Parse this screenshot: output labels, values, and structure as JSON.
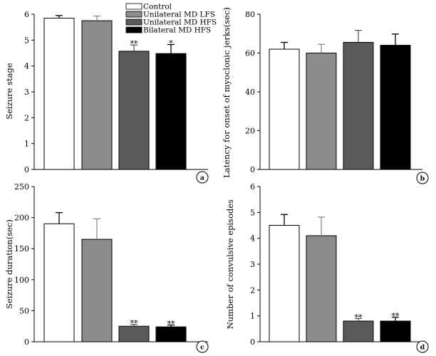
{
  "legend": [
    {
      "name": "Control",
      "color": "#ffffff"
    },
    {
      "name": "Unilateral MD LFS",
      "color": "#8c8c8c"
    },
    {
      "name": "Unilateral MD HFS",
      "color": "#5a5a5a"
    },
    {
      "name": "Bilateral MD HFS",
      "color": "#000000"
    }
  ],
  "chart_data": [
    {
      "type": "bar",
      "panel": "a",
      "ylabel": "Seizure stage",
      "ylim": [
        0,
        6
      ],
      "yticks": [
        0,
        1,
        2,
        3,
        4,
        5,
        6
      ],
      "categories": [
        "Control",
        "Unilateral MD LFS",
        "Unilateral MD HFS",
        "Bilateral MD HFS"
      ],
      "values": [
        5.85,
        5.75,
        4.57,
        4.48
      ],
      "errors": [
        0.1,
        0.18,
        0.24,
        0.35
      ],
      "significance": [
        "",
        "",
        "**",
        "*"
      ]
    },
    {
      "type": "bar",
      "panel": "b",
      "ylabel": "Latency for onset of myoclonic jerks(sec)",
      "ylim": [
        0,
        80
      ],
      "yticks": [
        0,
        20,
        40,
        60,
        80
      ],
      "categories": [
        "Control",
        "Unilateral MD LFS",
        "Unilateral MD HFS",
        "Bilateral MD HFS"
      ],
      "values": [
        62,
        60,
        65.5,
        64
      ],
      "errors": [
        3.5,
        4.5,
        6.2,
        5.8
      ],
      "significance": [
        "",
        "",
        "",
        ""
      ]
    },
    {
      "type": "bar",
      "panel": "c",
      "ylabel": "Seizure duration(sec)",
      "ylim": [
        0,
        250
      ],
      "yticks": [
        0,
        50,
        100,
        150,
        200,
        250
      ],
      "categories": [
        "Control",
        "Unilateral MD LFS",
        "Unilateral MD HFS",
        "Bilateral MD HFS"
      ],
      "values": [
        190,
        165,
        25,
        24
      ],
      "errors": [
        18,
        33,
        3,
        3
      ],
      "significance": [
        "",
        "",
        "**",
        "**"
      ]
    },
    {
      "type": "bar",
      "panel": "d",
      "ylabel": "Number of convulsive episodes",
      "ylim": [
        0,
        6
      ],
      "yticks": [
        0,
        1,
        2,
        3,
        4,
        5,
        6
      ],
      "categories": [
        "Control",
        "Unilateral MD LFS",
        "Unilateral MD HFS",
        "Bilateral MD HFS"
      ],
      "values": [
        4.5,
        4.1,
        0.8,
        0.8
      ],
      "errors": [
        0.42,
        0.72,
        0.1,
        0.15
      ],
      "significance": [
        "",
        "",
        "**",
        "**"
      ]
    }
  ]
}
